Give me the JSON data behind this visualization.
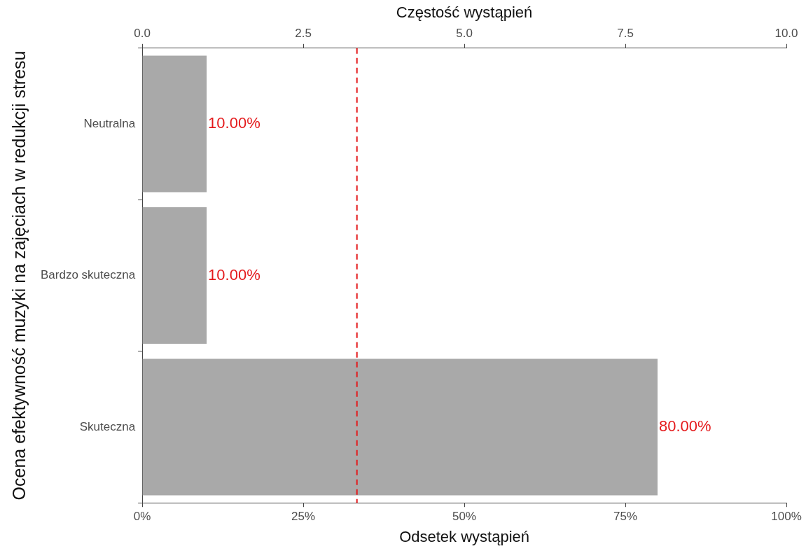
{
  "chart_data": {
    "type": "bar",
    "orientation": "horizontal",
    "xlabel": "Odsetek wystąpień",
    "x2label": "Częstość wystąpień",
    "ylabel": "Ocena efektywność muzyki na zajęciach w redukcji stresu",
    "categories": [
      "Neutralna",
      "Bardzo skuteczna",
      "Skuteczna"
    ],
    "values": [
      10,
      10,
      80
    ],
    "color": "#a9a9a9",
    "value_labels": [
      "10.00%",
      "10.00%",
      "80.00%"
    ],
    "xlim": [
      0,
      100
    ],
    "xticks": [
      {
        "value": 0,
        "label": "0%"
      },
      {
        "value": 25,
        "label": "25%"
      },
      {
        "value": 50,
        "label": "50%"
      },
      {
        "value": 75,
        "label": "75%"
      },
      {
        "value": 100,
        "label": "100%"
      }
    ],
    "x2lim": [
      0,
      10
    ],
    "x2ticks": [
      {
        "value": 0,
        "label": "0.0"
      },
      {
        "value": 2.5,
        "label": "2.5"
      },
      {
        "value": 5,
        "label": "5.0"
      },
      {
        "value": 7.5,
        "label": "7.5"
      },
      {
        "value": 10,
        "label": "10.0"
      }
    ],
    "ref_lines": [
      {
        "axis": "x",
        "value": 33.33,
        "color": "#e41a1c",
        "line_style": "dashed"
      }
    ],
    "grid": false,
    "legend": false
  }
}
